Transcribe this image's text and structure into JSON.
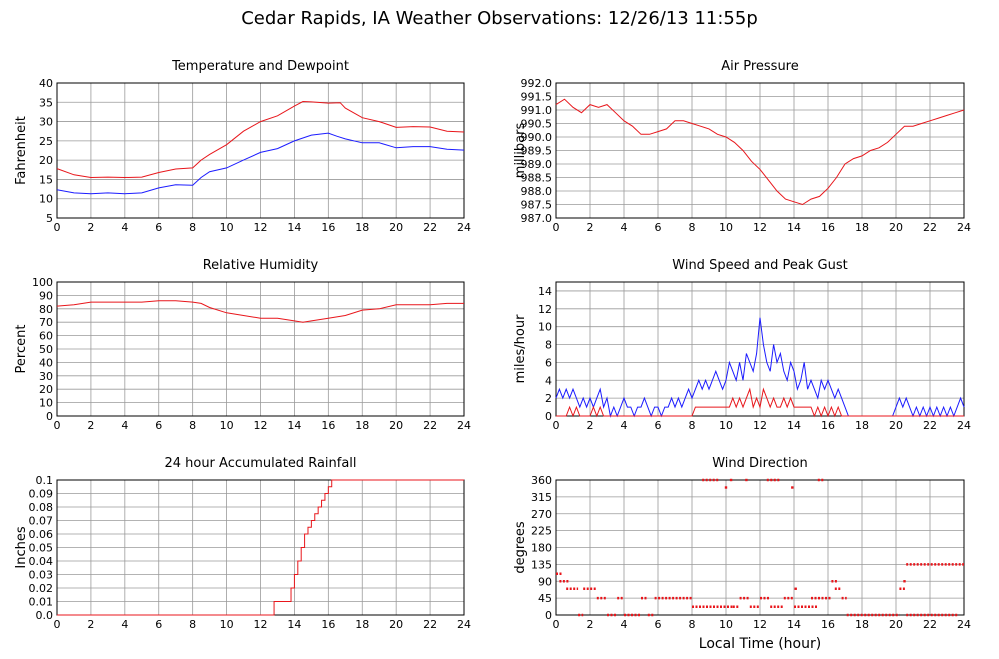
{
  "page": {
    "title": "Cedar Rapids, IA Weather Observations: 12/26/13 11:55p",
    "xlabel": "Local Time (hour)"
  },
  "colors": {
    "red": "#e8161b",
    "blue": "#1c1cff",
    "grid": "#9a9a9a",
    "axis": "#000000"
  },
  "chart_data": [
    {
      "id": "temp",
      "type": "line",
      "title": "Temperature and Dewpoint",
      "ylabel": "Fahrenheit",
      "xlim": [
        0,
        24
      ],
      "ylim": [
        5,
        40
      ],
      "xticks": [
        0,
        2,
        4,
        6,
        8,
        10,
        12,
        14,
        16,
        18,
        20,
        22,
        24
      ],
      "yticks": [
        5,
        10,
        15,
        20,
        25,
        30,
        35,
        40
      ],
      "ytick_labels": [
        "5",
        "10",
        "15",
        "20",
        "25",
        "30",
        "35",
        "40"
      ],
      "series": [
        {
          "color": "red",
          "x": [
            0,
            1,
            2,
            3,
            4,
            5,
            6,
            7,
            8,
            8.5,
            9,
            10,
            11,
            12,
            13,
            14,
            14.5,
            15,
            16,
            16.7,
            17,
            18,
            19,
            20,
            21,
            22,
            23,
            24
          ],
          "values": [
            17.8,
            16.2,
            15.5,
            15.6,
            15.5,
            15.6,
            16.8,
            17.7,
            18.0,
            20.0,
            21.5,
            24.0,
            27.5,
            30.0,
            31.5,
            34.0,
            35.2,
            35.1,
            34.8,
            34.9,
            33.5,
            31.0,
            30.0,
            28.5,
            28.7,
            28.6,
            27.5,
            27.3
          ]
        },
        {
          "color": "blue",
          "x": [
            0,
            1,
            2,
            3,
            4,
            5,
            6,
            7,
            8,
            8.5,
            9,
            10,
            11,
            12,
            13,
            14,
            15,
            16,
            16.5,
            17,
            18,
            19,
            20,
            21,
            22,
            23,
            24
          ],
          "values": [
            12.3,
            11.5,
            11.3,
            11.5,
            11.3,
            11.5,
            12.8,
            13.6,
            13.5,
            15.5,
            17.0,
            18.0,
            20.0,
            22.0,
            23.0,
            25.0,
            26.5,
            27.0,
            26.2,
            25.5,
            24.5,
            24.5,
            23.2,
            23.5,
            23.5,
            22.8,
            22.6
          ]
        }
      ]
    },
    {
      "id": "pressure",
      "type": "line",
      "title": "Air Pressure",
      "ylabel": "millibars",
      "xlim": [
        0,
        24
      ],
      "ylim": [
        987.0,
        992.0
      ],
      "xticks": [
        0,
        2,
        4,
        6,
        8,
        10,
        12,
        14,
        16,
        18,
        20,
        22,
        24
      ],
      "yticks": [
        987.0,
        987.5,
        988.0,
        988.5,
        989.0,
        989.5,
        990.0,
        990.5,
        991.0,
        991.5,
        992.0
      ],
      "ytick_labels": [
        "987.0",
        "987.5",
        "988.0",
        "988.5",
        "989.0",
        "989.5",
        "990.0",
        "990.5",
        "991.0",
        "991.5",
        "992.0"
      ],
      "series": [
        {
          "color": "red",
          "x": [
            0,
            0.5,
            1,
            1.5,
            2,
            2.5,
            3,
            3.5,
            4,
            4.5,
            5,
            5.5,
            6,
            6.5,
            7,
            7.5,
            8,
            8.5,
            9,
            9.5,
            10,
            10.5,
            11,
            11.5,
            12,
            12.5,
            13,
            13.5,
            14,
            14.5,
            15,
            15.5,
            16,
            16.5,
            17,
            17.5,
            18,
            18.5,
            19,
            19.5,
            20,
            20.5,
            21,
            21.5,
            22,
            22.5,
            23,
            23.5,
            24
          ],
          "values": [
            991.2,
            991.4,
            991.1,
            990.9,
            991.2,
            991.1,
            991.2,
            990.9,
            990.6,
            990.4,
            990.1,
            990.1,
            990.2,
            990.3,
            990.6,
            990.6,
            990.5,
            990.4,
            990.3,
            990.1,
            990.0,
            989.8,
            989.5,
            989.1,
            988.8,
            988.4,
            988.0,
            987.7,
            987.6,
            987.5,
            987.7,
            987.8,
            988.1,
            988.5,
            989.0,
            989.2,
            989.3,
            989.5,
            989.6,
            989.8,
            990.1,
            990.4,
            990.4,
            990.5,
            990.6,
            990.7,
            990.8,
            990.9,
            991.0
          ]
        }
      ]
    },
    {
      "id": "humidity",
      "type": "line",
      "title": "Relative Humidity",
      "ylabel": "Percent",
      "xlim": [
        0,
        24
      ],
      "ylim": [
        0,
        100
      ],
      "xticks": [
        0,
        2,
        4,
        6,
        8,
        10,
        12,
        14,
        16,
        18,
        20,
        22,
        24
      ],
      "yticks": [
        0,
        10,
        20,
        30,
        40,
        50,
        60,
        70,
        80,
        90,
        100
      ],
      "ytick_labels": [
        "0",
        "10",
        "20",
        "30",
        "40",
        "50",
        "60",
        "70",
        "80",
        "90",
        "100"
      ],
      "series": [
        {
          "color": "red",
          "x": [
            0,
            1,
            2,
            3,
            4,
            5,
            6,
            7,
            8,
            8.5,
            9,
            10,
            11,
            12,
            13,
            14,
            14.5,
            15,
            16,
            17,
            18,
            19,
            20,
            21,
            22,
            23,
            24
          ],
          "values": [
            82,
            83,
            85,
            85,
            85,
            85,
            86,
            86,
            85,
            84,
            81,
            77,
            75,
            73,
            73,
            71,
            70,
            71,
            73,
            75,
            79,
            80,
            83,
            83,
            83,
            84,
            84
          ]
        }
      ]
    },
    {
      "id": "wind",
      "type": "line",
      "title": "Wind Speed and Peak Gust",
      "ylabel": "miles/hour",
      "xlim": [
        0,
        24
      ],
      "ylim": [
        0,
        15
      ],
      "xticks": [
        0,
        2,
        4,
        6,
        8,
        10,
        12,
        14,
        16,
        18,
        20,
        22,
        24
      ],
      "yticks": [
        0,
        2,
        4,
        6,
        8,
        10,
        12,
        14
      ],
      "ytick_labels": [
        "0",
        "2",
        "4",
        "6",
        "8",
        "10",
        "12",
        "14"
      ],
      "series": [
        {
          "color": "blue",
          "x": [
            0,
            0.2,
            0.4,
            0.6,
            0.8,
            1.0,
            1.2,
            1.4,
            1.6,
            1.8,
            2.0,
            2.2,
            2.4,
            2.6,
            2.8,
            3.0,
            3.2,
            3.4,
            3.6,
            3.8,
            4.0,
            4.2,
            4.4,
            4.6,
            4.8,
            5.0,
            5.2,
            5.4,
            5.6,
            5.8,
            6.0,
            6.2,
            6.4,
            6.6,
            6.8,
            7.0,
            7.2,
            7.4,
            7.6,
            7.8,
            8.0,
            8.2,
            8.4,
            8.6,
            8.8,
            9.0,
            9.2,
            9.4,
            9.6,
            9.8,
            10.0,
            10.2,
            10.4,
            10.6,
            10.8,
            11.0,
            11.2,
            11.4,
            11.6,
            11.8,
            12.0,
            12.2,
            12.4,
            12.6,
            12.8,
            13.0,
            13.2,
            13.4,
            13.6,
            13.8,
            14.0,
            14.2,
            14.4,
            14.6,
            14.8,
            15.0,
            15.2,
            15.4,
            15.6,
            15.8,
            16.0,
            16.2,
            16.4,
            16.6,
            16.8,
            17.0,
            17.2,
            18,
            19,
            19.8,
            20.0,
            20.2,
            20.4,
            20.6,
            20.8,
            21.0,
            21.2,
            21.4,
            21.6,
            21.8,
            22.0,
            22.2,
            22.4,
            22.6,
            22.8,
            23.0,
            23.2,
            23.4,
            23.6,
            23.8,
            24.0
          ],
          "values": [
            2,
            3,
            2,
            3,
            2,
            3,
            2,
            1,
            2,
            1,
            2,
            1,
            2,
            3,
            1,
            2,
            0,
            1,
            0,
            1,
            2,
            1,
            1,
            0,
            1,
            1,
            2,
            1,
            0,
            1,
            1,
            0,
            1,
            1,
            2,
            1,
            2,
            1,
            2,
            3,
            2,
            3,
            4,
            3,
            4,
            3,
            4,
            5,
            4,
            3,
            4,
            6,
            5,
            4,
            6,
            4,
            7,
            6,
            5,
            7,
            11,
            8,
            6,
            5,
            8,
            6,
            7,
            5,
            4,
            6,
            5,
            3,
            4,
            6,
            3,
            4,
            3,
            2,
            4,
            3,
            4,
            3,
            2,
            3,
            2,
            1,
            0,
            0,
            0,
            0,
            1,
            2,
            1,
            2,
            1,
            0,
            1,
            0,
            1,
            0,
            1,
            0,
            1,
            0,
            1,
            0,
            1,
            0,
            1,
            2,
            1
          ]
        },
        {
          "color": "red",
          "x": [
            0,
            0.6,
            0.8,
            1.0,
            1.2,
            1.4,
            2.0,
            2.2,
            2.4,
            2.6,
            2.8,
            3.0,
            6.0,
            8.0,
            8.2,
            10.0,
            10.2,
            10.4,
            10.6,
            10.8,
            11.0,
            11.2,
            11.4,
            11.6,
            11.8,
            12.0,
            12.2,
            12.4,
            12.6,
            12.8,
            13.0,
            13.2,
            13.4,
            13.6,
            13.8,
            14.0,
            14.2,
            14.4,
            14.6,
            14.8,
            15.0,
            15.2,
            15.4,
            15.6,
            15.8,
            16.0,
            16.2,
            16.4,
            16.6,
            16.8,
            17.0,
            24.0
          ],
          "values": [
            0,
            0,
            1,
            0,
            1,
            0,
            0,
            1,
            0,
            1,
            0,
            0,
            0,
            0,
            1,
            1,
            1,
            2,
            1,
            2,
            1,
            2,
            3,
            1,
            2,
            1,
            3,
            2,
            1,
            2,
            1,
            1,
            2,
            1,
            2,
            1,
            1,
            1,
            1,
            1,
            1,
            0,
            1,
            0,
            1,
            0,
            1,
            0,
            1,
            0,
            0,
            0
          ]
        }
      ]
    },
    {
      "id": "rain",
      "type": "line",
      "title": "24 hour Accumulated Rainfall",
      "ylabel": "Inches",
      "xlim": [
        0,
        24
      ],
      "ylim": [
        0,
        0.1
      ],
      "xticks": [
        0,
        2,
        4,
        6,
        8,
        10,
        12,
        14,
        16,
        18,
        20,
        22,
        24
      ],
      "yticks": [
        0,
        0.01,
        0.02,
        0.03,
        0.04,
        0.05,
        0.06,
        0.07,
        0.08,
        0.09,
        0.1
      ],
      "ytick_labels": [
        "0.0",
        "0.01",
        "0.02",
        "0.03",
        "0.04",
        "0.05",
        "0.06",
        "0.07",
        "0.08",
        "0.09",
        "0.1"
      ],
      "series": [
        {
          "color": "red",
          "x": [
            0,
            12.7,
            12.8,
            13.7,
            13.8,
            14.0,
            14.2,
            14.4,
            14.6,
            14.8,
            15.0,
            15.2,
            15.4,
            15.6,
            15.8,
            16.0,
            16.2,
            24
          ],
          "values": [
            0,
            0,
            0.01,
            0.01,
            0.02,
            0.03,
            0.04,
            0.05,
            0.06,
            0.065,
            0.07,
            0.075,
            0.08,
            0.085,
            0.09,
            0.095,
            0.1,
            0.1
          ]
        }
      ]
    },
    {
      "id": "direction",
      "type": "scatter",
      "title": "Wind Direction",
      "ylabel": "degrees",
      "xlim": [
        0,
        24
      ],
      "ylim": [
        0,
        360
      ],
      "xticks": [
        0,
        2,
        4,
        6,
        8,
        10,
        12,
        14,
        16,
        18,
        20,
        22,
        24
      ],
      "yticks": [
        0,
        45,
        90,
        135,
        180,
        225,
        270,
        315,
        360
      ],
      "ytick_labels": [
        "0",
        "45",
        "90",
        "135",
        "180",
        "225",
        "270",
        "315",
        "360"
      ],
      "series": [
        {
          "color": "red",
          "runs": [
            {
              "x0": 0.0,
              "x1": 0.4,
              "y": 110
            },
            {
              "x0": 0.2,
              "x1": 0.8,
              "y": 90
            },
            {
              "x0": 0.6,
              "x1": 1.3,
              "y": 70
            },
            {
              "x0": 1.3,
              "x1": 1.6,
              "y": 0
            },
            {
              "x0": 1.6,
              "x1": 2.4,
              "y": 70
            },
            {
              "x0": 2.4,
              "x1": 3.0,
              "y": 45
            },
            {
              "x0": 3.0,
              "x1": 3.6,
              "y": 0
            },
            {
              "x0": 3.6,
              "x1": 4.0,
              "y": 45
            },
            {
              "x0": 4.0,
              "x1": 5.0,
              "y": 0
            },
            {
              "x0": 5.0,
              "x1": 5.4,
              "y": 45
            },
            {
              "x0": 5.4,
              "x1": 5.8,
              "y": 0
            },
            {
              "x0": 5.8,
              "x1": 8.0,
              "y": 45
            },
            {
              "x0": 8.0,
              "x1": 10.4,
              "y": 22
            },
            {
              "x0": 8.6,
              "x1": 9.6,
              "y": 360
            },
            {
              "x0": 10.4,
              "x1": 10.8,
              "y": 22
            },
            {
              "x0": 10.8,
              "x1": 11.4,
              "y": 45
            },
            {
              "x0": 11.4,
              "x1": 12.0,
              "y": 22
            },
            {
              "x0": 12.0,
              "x1": 12.6,
              "y": 45
            },
            {
              "x0": 12.4,
              "x1": 13.2,
              "y": 360
            },
            {
              "x0": 12.6,
              "x1": 13.4,
              "y": 22
            },
            {
              "x0": 13.4,
              "x1": 14.0,
              "y": 45
            },
            {
              "x0": 14.0,
              "x1": 15.4,
              "y": 22
            },
            {
              "x0": 15.4,
              "x1": 15.8,
              "y": 360
            },
            {
              "x0": 15.0,
              "x1": 16.2,
              "y": 45
            },
            {
              "x0": 16.2,
              "x1": 16.6,
              "y": 90
            },
            {
              "x0": 16.4,
              "x1": 16.8,
              "y": 70
            },
            {
              "x0": 16.8,
              "x1": 17.1,
              "y": 45
            },
            {
              "x0": 17.1,
              "x1": 20.2,
              "y": 0
            },
            {
              "x0": 20.2,
              "x1": 20.6,
              "y": 70
            },
            {
              "x0": 20.6,
              "x1": 24.0,
              "y": 135
            },
            {
              "x0": 20.6,
              "x1": 23.6,
              "y": 0
            }
          ],
          "points": [
            {
              "x": 10.0,
              "y": 340
            },
            {
              "x": 13.9,
              "y": 340
            },
            {
              "x": 14.1,
              "y": 70
            },
            {
              "x": 20.5,
              "y": 90
            },
            {
              "x": 11.2,
              "y": 360
            },
            {
              "x": 10.3,
              "y": 360
            }
          ]
        }
      ]
    }
  ]
}
